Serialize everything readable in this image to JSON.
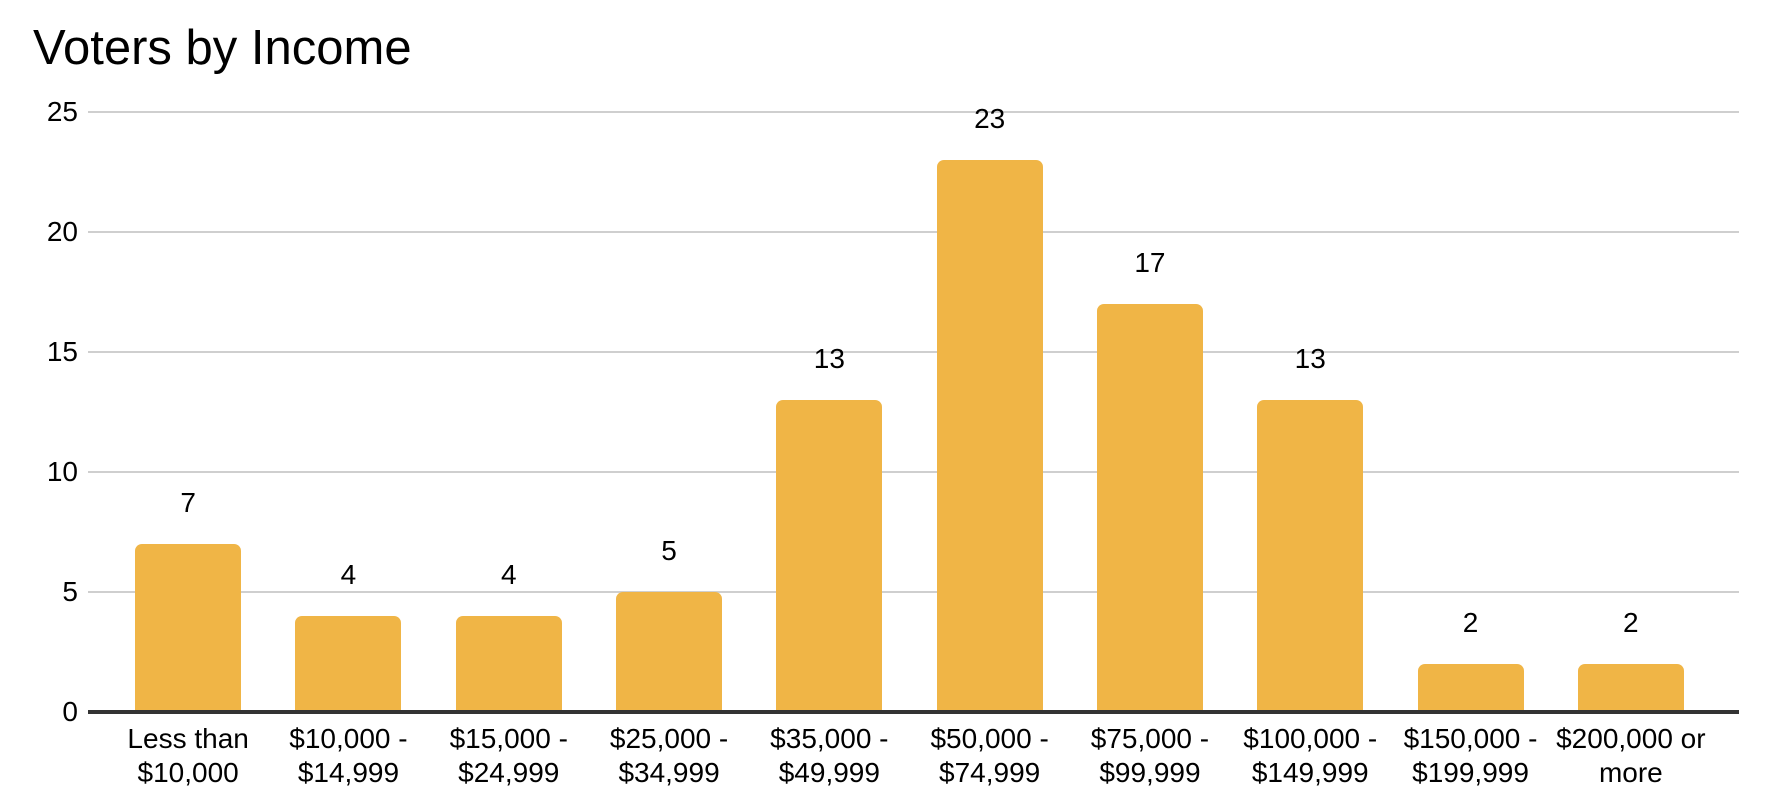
{
  "chart_data": {
    "type": "bar",
    "title": "Voters by Income",
    "categories": [
      "Less than $10,000",
      "$10,000 - $14,999",
      "$15,000 - $24,999",
      "$25,000 - $34,999",
      "$35,000 - $49,999",
      "$50,000 - $74,999",
      "$75,000 - $99,999",
      "$100,000 - $149,999",
      "$150,000 - $199,999",
      "$200,000 or more"
    ],
    "values": [
      7,
      4,
      4,
      5,
      13,
      23,
      17,
      13,
      2,
      2
    ],
    "yticks": [
      0,
      5,
      10,
      15,
      20,
      25
    ],
    "ylim": [
      0,
      25
    ],
    "xlabel": "",
    "ylabel": "",
    "grid": true,
    "legend_position": "none",
    "value_labels_shown": true,
    "colors": {
      "bar": "#F0B546",
      "gridline": "#CFCFCF",
      "axis_line": "#333333",
      "text": "#000000",
      "background": "#FFFFFF"
    }
  }
}
